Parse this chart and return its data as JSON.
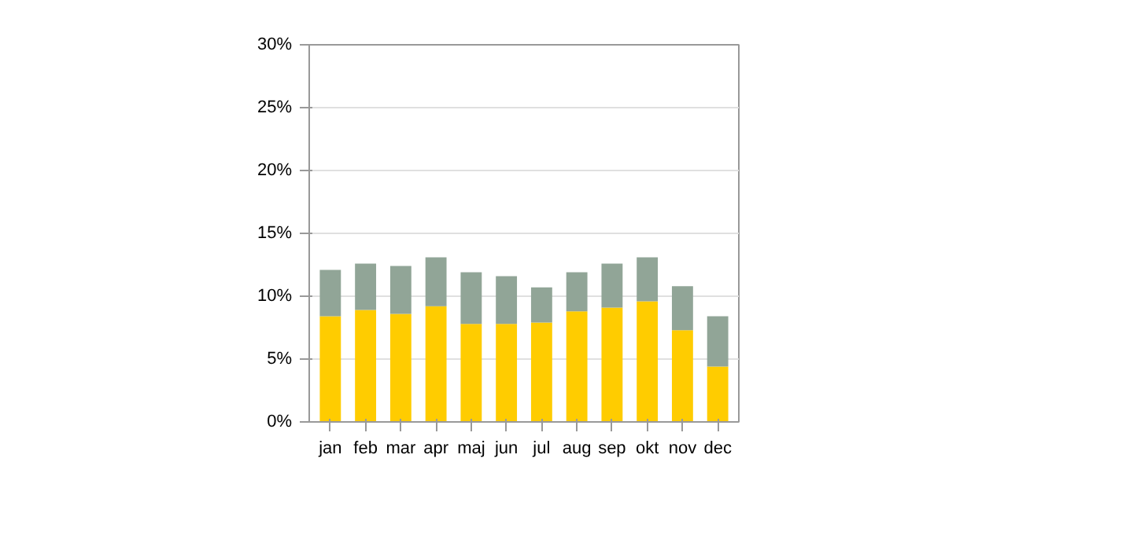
{
  "chart_data": {
    "type": "bar",
    "stacked": true,
    "categories": [
      "jan",
      "feb",
      "mar",
      "apr",
      "maj",
      "jun",
      "jul",
      "aug",
      "sep",
      "okt",
      "nov",
      "dec"
    ],
    "series": [
      {
        "color": "#ffcc00",
        "values": [
          8.4,
          8.9,
          8.6,
          9.2,
          7.8,
          7.8,
          7.9,
          8.8,
          9.1,
          9.6,
          7.3,
          4.4
        ]
      },
      {
        "color": "#91a597",
        "values": [
          3.7,
          3.7,
          3.8,
          3.9,
          4.1,
          3.8,
          2.8,
          3.1,
          3.5,
          3.5,
          3.5,
          4.0
        ]
      }
    ],
    "ylim": [
      0,
      30
    ],
    "yticks": [
      {
        "value": 0,
        "label": "0%"
      },
      {
        "value": 5,
        "label": "5%"
      },
      {
        "value": 10,
        "label": "10%"
      },
      {
        "value": 15,
        "label": "15%"
      },
      {
        "value": 20,
        "label": "20%"
      },
      {
        "value": 25,
        "label": "25%"
      },
      {
        "value": 30,
        "label": "30%"
      }
    ],
    "grid": "y"
  }
}
